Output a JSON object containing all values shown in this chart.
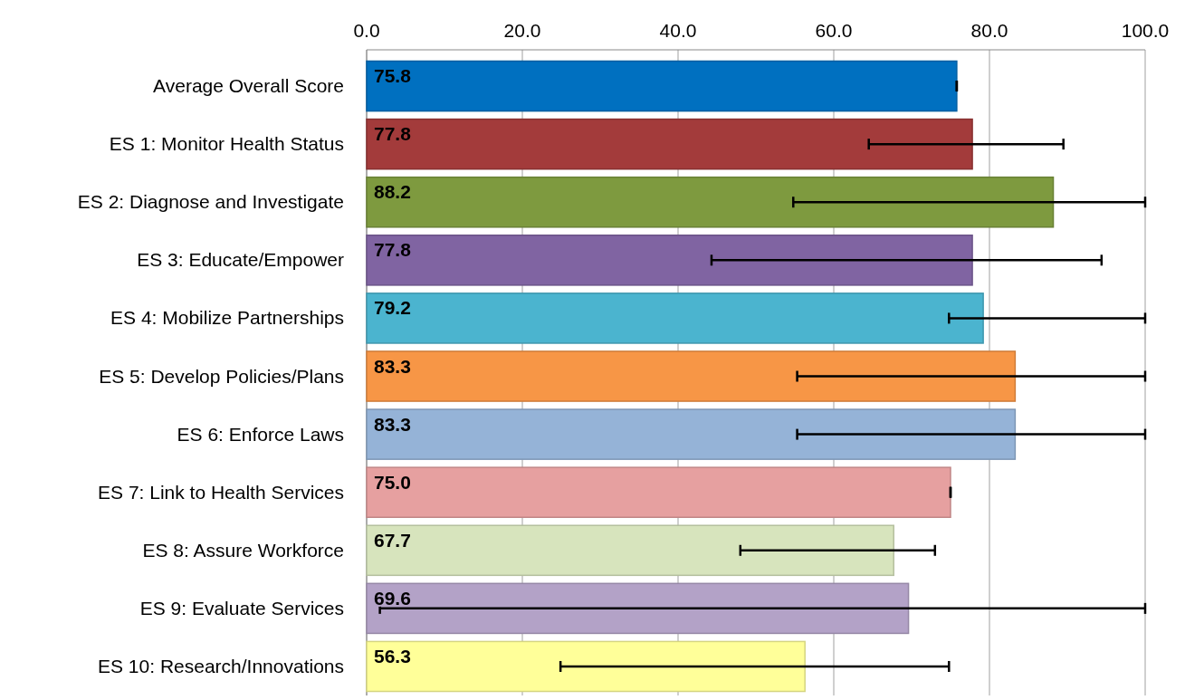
{
  "chart_data": {
    "type": "bar",
    "orientation": "horizontal",
    "categories": [
      "Average Overall Score",
      "ES 1: Monitor Health Status",
      "ES 2: Diagnose and Investigate",
      "ES 3: Educate/Empower",
      "ES 4: Mobilize Partnerships",
      "ES 5: Develop Policies/Plans",
      "ES 6: Enforce Laws",
      "ES 7: Link to Health Services",
      "ES 8: Assure Workforce",
      "ES 9: Evaluate Services",
      "ES 10: Research/Innovations"
    ],
    "values": [
      75.8,
      77.8,
      88.2,
      77.8,
      79.2,
      83.3,
      83.3,
      75.0,
      67.7,
      69.6,
      56.3
    ],
    "colors": [
      "#0070c0",
      "#a33b3b",
      "#7e9a3f",
      "#8064a2",
      "#4bb4cf",
      "#f79646",
      "#95b3d7",
      "#e6a0a0",
      "#d7e4bd",
      "#b3a2c7",
      "#ffff99"
    ],
    "errors": [
      0,
      [
        64.5,
        89.5
      ],
      [
        54.8,
        100
      ],
      [
        44.3,
        94.4
      ],
      [
        74.8,
        100
      ],
      [
        55.3,
        100
      ],
      [
        55.3,
        100
      ],
      0,
      [
        48.0,
        73.0
      ],
      [
        1.7,
        100
      ],
      [
        24.9,
        74.8
      ]
    ],
    "xlim": [
      0,
      100
    ],
    "xticks": [
      {
        "value": 0,
        "label": "0.0"
      },
      {
        "value": 20,
        "label": "20.0"
      },
      {
        "value": 40,
        "label": "40.0"
      },
      {
        "value": 60,
        "label": "60.0"
      },
      {
        "value": 80,
        "label": "80.0"
      },
      {
        "value": 100,
        "label": "100.0"
      }
    ],
    "value_labels": [
      "75.8",
      "77.8",
      "88.2",
      "77.8",
      "79.2",
      "83.3",
      "83.3",
      "75.0",
      "67.7",
      "69.6",
      "56.3"
    ],
    "grid": "x"
  }
}
